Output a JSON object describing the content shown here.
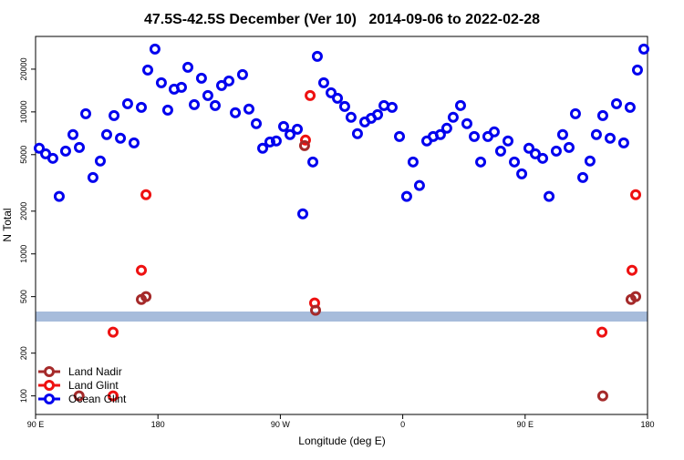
{
  "chart_data": {
    "type": "scatter",
    "title": "47.5S-42.5S December (Ver 10)   2014-09-06 to 2022-02-28",
    "xlabel": "Longitude (deg E)",
    "ylabel": "N Total",
    "xlim": [
      90,
      540
    ],
    "ylim": [
      74,
      34000
    ],
    "ylog": true,
    "legend": "lower left",
    "xticks": [
      {
        "value": 90,
        "label": "90 E"
      },
      {
        "value": 180,
        "label": "180"
      },
      {
        "value": 270,
        "label": "90 W"
      },
      {
        "value": 360,
        "label": "0"
      },
      {
        "value": 450,
        "label": "90 E"
      },
      {
        "value": 540,
        "label": "180"
      }
    ],
    "yticks": [
      100,
      200,
      500,
      1000,
      2000,
      5000,
      10000,
      20000
    ],
    "series": [
      {
        "name": "Land Nadir",
        "color": "#a52a2a",
        "x": [
          122,
          167.8,
          171.2,
          287.8,
          295.9,
          507.1,
          527.9,
          531.3
        ],
        "values": [
          100,
          478,
          500,
          5790,
          401,
          100,
          478,
          500
        ]
      },
      {
        "name": "Land Glint",
        "color": "#ee1111",
        "x": [
          147,
          147,
          167.8,
          171.2,
          288.5,
          291.9,
          295.2,
          506.5,
          528.6,
          531.3
        ],
        "values": [
          100,
          281,
          767,
          2610,
          6330,
          13040,
          451,
          281,
          767,
          2610
        ]
      },
      {
        "name": "Ocean Glint",
        "color": "#0000ee",
        "x": [
          92.7,
          97.4,
          102.7,
          107.4,
          112.1,
          117.5,
          122.2,
          126.9,
          132.2,
          137.6,
          142.3,
          147.7,
          152.4,
          157.7,
          162.4,
          167.8,
          172.5,
          177.8,
          182.5,
          187.2,
          191.9,
          197.3,
          202,
          206.7,
          212,
          216.7,
          222.1,
          226.8,
          232.2,
          236.9,
          242.2,
          246.9,
          252.3,
          257,
          262.3,
          267,
          272.4,
          277.1,
          282.5,
          286.5,
          293.9,
          297.2,
          301.9,
          307.3,
          312,
          317.3,
          322,
          326.7,
          332.1,
          336.8,
          341.5,
          346.2,
          352.2,
          357.6,
          362.9,
          367.6,
          372.3,
          377.7,
          382.4,
          387.7,
          392.4,
          397.1,
          402.5,
          407.2,
          412.6,
          417.3,
          422.6,
          427.3,
          432,
          437.4,
          442.1,
          447.5,
          452.8,
          457.5,
          462.9,
          467.6,
          472.9,
          477.6,
          482.3,
          487,
          492.4,
          497.7,
          502.4,
          507.1,
          512.5,
          517.2,
          522.5,
          527.2,
          532.6,
          537.3
        ],
        "values": [
          5550,
          5070,
          4710,
          2540,
          5300,
          6920,
          5620,
          9710,
          3450,
          4510,
          6920,
          9420,
          6520,
          11420,
          6050,
          10770,
          19720,
          27700,
          16030,
          10300,
          14460,
          14900,
          20600,
          11250,
          17270,
          13040,
          11090,
          15350,
          16520,
          9860,
          18320,
          10460,
          8260,
          5550,
          6140,
          6240,
          7890,
          6920,
          7550,
          1915,
          4440,
          24600,
          16030,
          13640,
          12480,
          10920,
          9160,
          7020,
          8500,
          9020,
          9570,
          11090,
          10770,
          6710,
          2540,
          4440,
          3030,
          6240,
          6710,
          6920,
          7670,
          9160,
          11090,
          8260,
          6710,
          4440,
          6710,
          7230,
          5300,
          6240,
          4440,
          3660,
          5550,
          5070,
          4710,
          2540,
          5300,
          6920,
          5620,
          9710,
          3450,
          4510,
          6920,
          9420,
          6520,
          11420,
          6050,
          10770,
          19720,
          27700
        ]
      }
    ]
  }
}
